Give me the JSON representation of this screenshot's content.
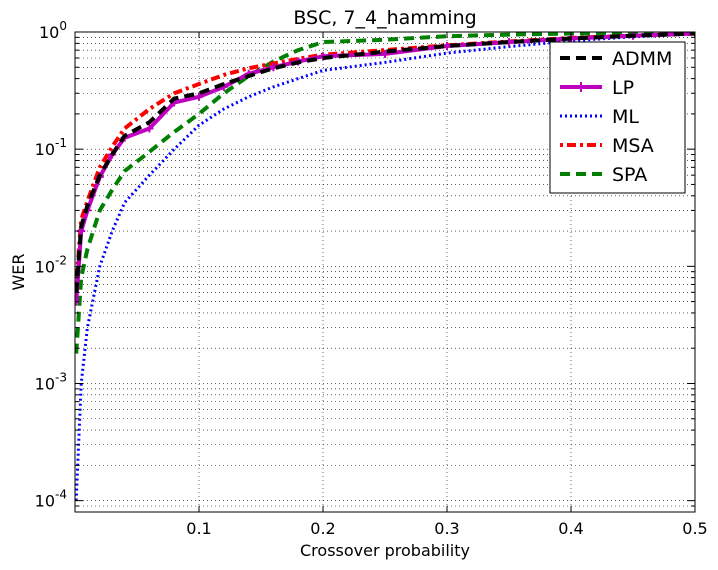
{
  "chart_data": {
    "type": "line",
    "title": "BSC, 7_4_hamming",
    "xlabel": "Crossover probability",
    "ylabel": "WER",
    "xlim": [
      0.0,
      0.5
    ],
    "ylim": [
      8e-05,
      1.0
    ],
    "yscale": "log",
    "grid": "major and minor, dotted",
    "legend_position": "top-right",
    "x_ticks": [
      0.1,
      0.2,
      0.3,
      0.4,
      0.5
    ],
    "x_tick_labels": [
      "0.1",
      "0.2",
      "0.3",
      "0.4",
      "0.5"
    ],
    "y_ticks": [
      0.0001,
      0.001,
      0.01,
      0.1,
      1
    ],
    "y_tick_labels": [
      {
        "base": "10",
        "exp": "-4"
      },
      {
        "base": "10",
        "exp": "-3"
      },
      {
        "base": "10",
        "exp": "-2"
      },
      {
        "base": "10",
        "exp": "-1"
      },
      {
        "base": "10",
        "exp": "0"
      }
    ],
    "x": [
      0.001,
      0.005,
      0.01,
      0.02,
      0.03,
      0.04,
      0.06,
      0.08,
      0.1,
      0.12,
      0.14,
      0.16,
      0.18,
      0.2,
      0.25,
      0.3,
      0.35,
      0.4,
      0.45,
      0.5
    ],
    "series": [
      {
        "name": "ADMM",
        "color": "#000000",
        "dash": "10,6",
        "width": 4,
        "values": [
          0.006,
          0.022,
          0.033,
          0.06,
          0.09,
          0.13,
          0.17,
          0.27,
          0.3,
          0.36,
          0.42,
          0.49,
          0.55,
          0.6,
          0.68,
          0.76,
          0.82,
          0.88,
          0.93,
          0.97
        ]
      },
      {
        "name": "LP",
        "color": "#bf00bf",
        "dash": "",
        "width": 4,
        "marker": "plus",
        "values": [
          0.005,
          0.02,
          0.03,
          0.058,
          0.09,
          0.125,
          0.15,
          0.25,
          0.28,
          0.34,
          0.44,
          0.5,
          0.56,
          0.62,
          0.65,
          0.76,
          0.82,
          0.88,
          0.93,
          0.97
        ]
      },
      {
        "name": "ML",
        "color": "#0000ff",
        "dash": "2,3",
        "width": 3,
        "values": [
          0.0001,
          0.001,
          0.003,
          0.01,
          0.02,
          0.035,
          0.06,
          0.1,
          0.16,
          0.22,
          0.28,
          0.34,
          0.4,
          0.47,
          0.55,
          0.66,
          0.75,
          0.84,
          0.91,
          0.96
        ]
      },
      {
        "name": "MSA",
        "color": "#ff0000",
        "dash": "3,4,9,4",
        "width": 4,
        "values": [
          0.007,
          0.025,
          0.036,
          0.07,
          0.105,
          0.15,
          0.22,
          0.3,
          0.36,
          0.43,
          0.49,
          0.54,
          0.59,
          0.64,
          0.7,
          0.77,
          0.83,
          0.89,
          0.93,
          0.97
        ]
      },
      {
        "name": "SPA",
        "color": "#008000",
        "dash": "10,6",
        "width": 4,
        "values": [
          0.0018,
          0.008,
          0.014,
          0.03,
          0.045,
          0.065,
          0.095,
          0.14,
          0.2,
          0.3,
          0.42,
          0.56,
          0.7,
          0.82,
          0.86,
          0.92,
          0.95,
          0.97,
          0.98,
          0.99
        ]
      }
    ]
  }
}
